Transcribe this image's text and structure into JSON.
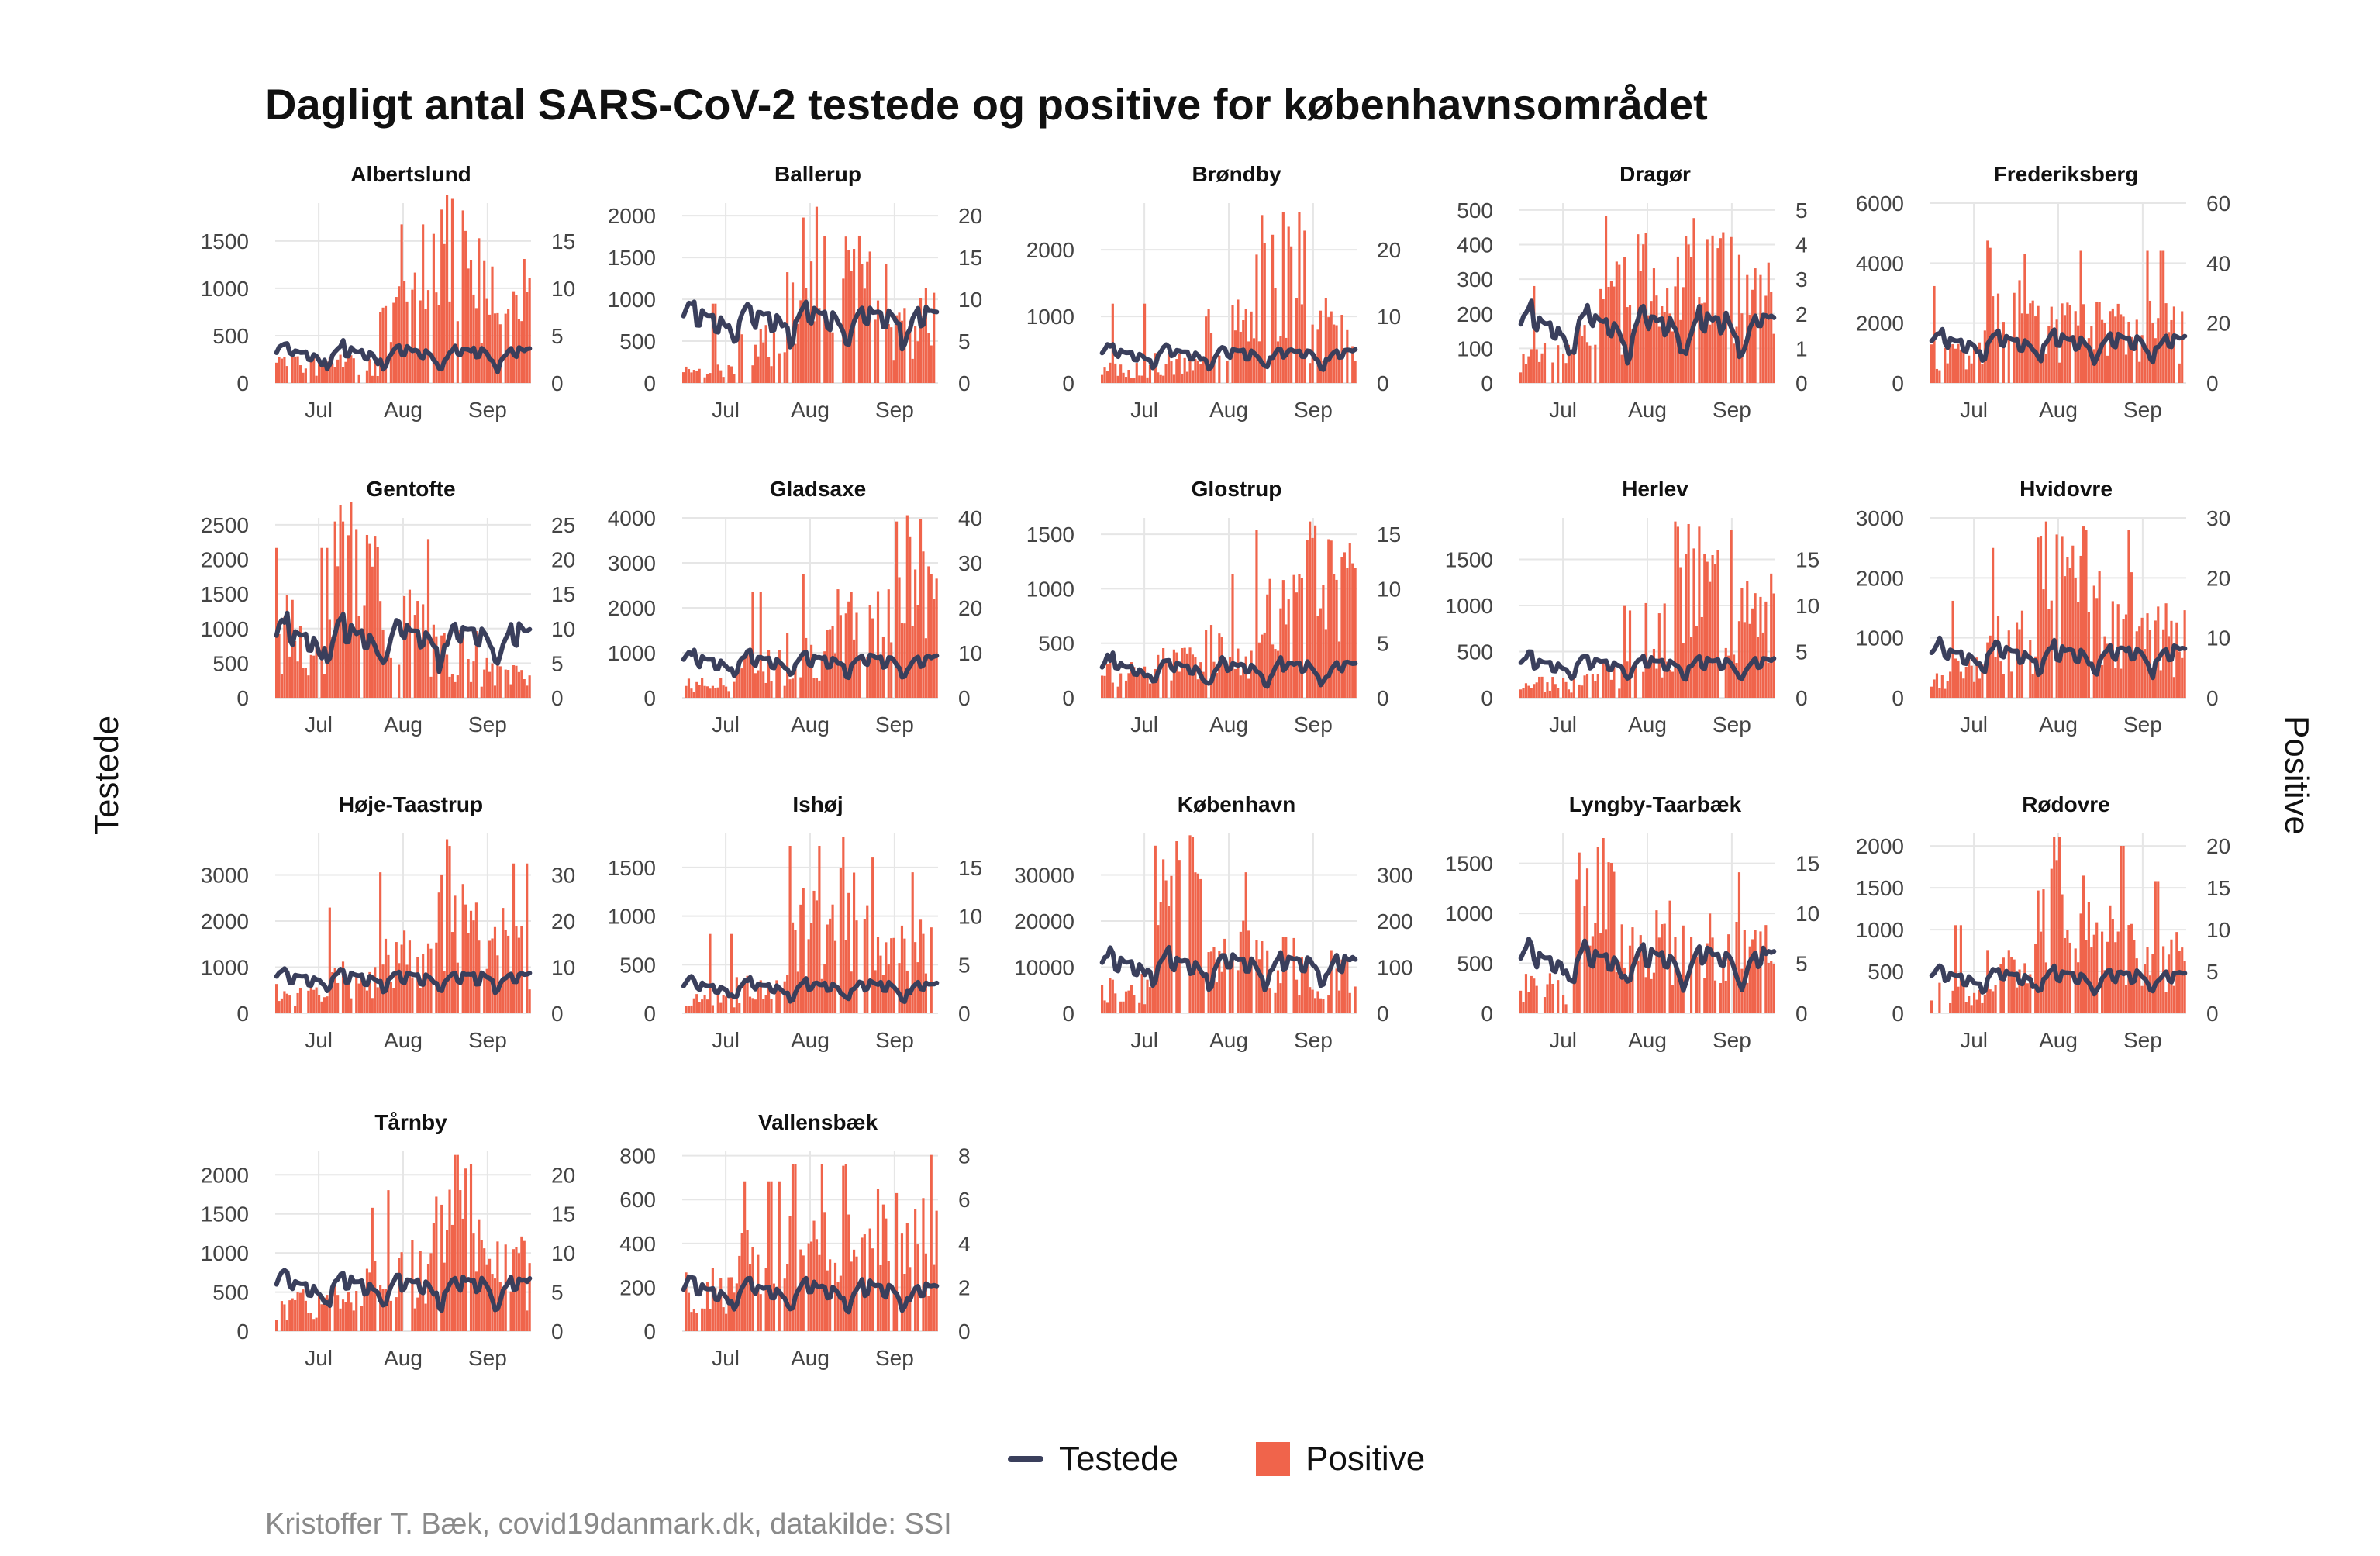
{
  "title": "Dagligt antal SARS-CoV-2 testede og positive for københavnsområdet",
  "y_left_label": "Testede",
  "y_right_label": "Positive",
  "caption": "Kristoffer T. Bæk, covid19danmark.dk, datakilde: SSI",
  "legend": {
    "line_label": "Testede",
    "bar_label": "Positive"
  },
  "colors": {
    "line": "#3a3f5c",
    "bar": "#f0644b",
    "grid": "#e6e6e6",
    "axis_text": "#444444"
  },
  "chart_data": [
    {
      "panel": "Albertslund",
      "left_ticks": [
        0,
        500,
        1000,
        1500
      ],
      "right_ticks": [
        0,
        5,
        10,
        15
      ],
      "left_max": 1900,
      "right_max": 19,
      "seed": 1,
      "tested_base": 320,
      "tested_amp": 150,
      "pos_profile": [
        0.15,
        0.15,
        0.55,
        0.9,
        0.6
      ]
    },
    {
      "panel": "Ballerup",
      "left_ticks": [
        0,
        500,
        1000,
        1500,
        2000
      ],
      "right_ticks": [
        0,
        5,
        10,
        15,
        20
      ],
      "left_max": 2150,
      "right_max": 21.5,
      "seed": 2,
      "tested_base": 800,
      "tested_amp": 250,
      "pos_profile": [
        0.1,
        0.3,
        0.8,
        0.7,
        0.45
      ]
    },
    {
      "panel": "Brøndby",
      "left_ticks": [
        0,
        1000,
        2000
      ],
      "right_ticks": [
        0,
        10,
        20
      ],
      "left_max": 2700,
      "right_max": 27,
      "seed": 3,
      "tested_base": 450,
      "tested_amp": 180,
      "pos_profile": [
        0.1,
        0.15,
        0.45,
        0.85,
        0.45
      ]
    },
    {
      "panel": "Dragør",
      "left_ticks": [
        0,
        100,
        200,
        300,
        400,
        500
      ],
      "right_ticks": [
        0,
        1,
        2,
        3,
        4,
        5
      ],
      "left_max": 520,
      "right_max": 5.2,
      "seed": 4,
      "tested_base": 170,
      "tested_amp": 90,
      "pos_profile": [
        0.2,
        0.6,
        0.8,
        0.8,
        0.7
      ]
    },
    {
      "panel": "Frederiksberg",
      "left_ticks": [
        0,
        2000,
        4000,
        6000
      ],
      "right_ticks": [
        0,
        20,
        40,
        60
      ],
      "left_max": 6000,
      "right_max": 60,
      "seed": 5,
      "tested_base": 1400,
      "tested_amp": 500,
      "pos_profile": [
        0.2,
        0.8,
        0.4,
        0.45,
        0.4
      ]
    },
    {
      "panel": "Gentofte",
      "left_ticks": [
        0,
        500,
        1000,
        1500,
        2000,
        2500
      ],
      "right_ticks": [
        0,
        5,
        10,
        15,
        20,
        25
      ],
      "left_max": 2600,
      "right_max": 26,
      "seed": 6,
      "tested_base": 900,
      "tested_amp": 400,
      "pos_profile": [
        0.5,
        0.95,
        0.55,
        0.35,
        0.2
      ]
    },
    {
      "panel": "Gladsaxe",
      "left_ticks": [
        0,
        1000,
        2000,
        3000,
        4000
      ],
      "right_ticks": [
        0,
        10,
        20,
        30,
        40
      ],
      "left_max": 4000,
      "right_max": 40,
      "seed": 7,
      "tested_base": 850,
      "tested_amp": 250,
      "pos_profile": [
        0.1,
        0.25,
        0.35,
        0.55,
        0.9
      ]
    },
    {
      "panel": "Glostrup",
      "left_ticks": [
        0,
        500,
        1000,
        1500
      ],
      "right_ticks": [
        0,
        5,
        10,
        15
      ],
      "left_max": 1650,
      "right_max": 16.5,
      "seed": 8,
      "tested_base": 280,
      "tested_amp": 150,
      "pos_profile": [
        0.2,
        0.25,
        0.35,
        0.6,
        0.85
      ]
    },
    {
      "panel": "Herlev",
      "left_ticks": [
        0,
        500,
        1000,
        1500
      ],
      "right_ticks": [
        0,
        5,
        10,
        15
      ],
      "left_max": 1950,
      "right_max": 19.5,
      "seed": 9,
      "tested_base": 380,
      "tested_amp": 130,
      "pos_profile": [
        0.1,
        0.2,
        0.45,
        0.85,
        0.6
      ]
    },
    {
      "panel": "Hvidovre",
      "left_ticks": [
        0,
        1000,
        2000,
        3000
      ],
      "right_ticks": [
        0,
        10,
        20,
        30
      ],
      "left_max": 3000,
      "right_max": 30,
      "seed": 10,
      "tested_base": 750,
      "tested_amp": 280,
      "pos_profile": [
        0.2,
        0.5,
        0.9,
        0.6,
        0.45
      ]
    },
    {
      "panel": "Høje-Taastrup",
      "left_ticks": [
        0,
        1000,
        2000,
        3000
      ],
      "right_ticks": [
        0,
        10,
        20,
        30
      ],
      "left_max": 3900,
      "right_max": 39,
      "seed": 11,
      "tested_base": 800,
      "tested_amp": 200,
      "pos_profile": [
        0.15,
        0.25,
        0.45,
        0.85,
        0.5
      ]
    },
    {
      "panel": "Ishøj",
      "left_ticks": [
        0,
        500,
        1000,
        1500
      ],
      "right_ticks": [
        0,
        5,
        10,
        15
      ],
      "left_max": 1850,
      "right_max": 18.5,
      "seed": 12,
      "tested_base": 280,
      "tested_amp": 120,
      "pos_profile": [
        0.1,
        0.2,
        0.6,
        0.75,
        0.45
      ]
    },
    {
      "panel": "København",
      "left_ticks": [
        0,
        10000,
        20000,
        30000
      ],
      "right_ticks": [
        0,
        100,
        200,
        300
      ],
      "left_max": 39000,
      "right_max": 390,
      "seed": 13,
      "tested_base": 11000,
      "tested_amp": 4000,
      "pos_profile": [
        0.2,
        0.85,
        0.45,
        0.4,
        0.3
      ]
    },
    {
      "panel": "Lyngby-Taarbæk",
      "left_ticks": [
        0,
        500,
        1000,
        1500
      ],
      "right_ticks": [
        0,
        5,
        10,
        15
      ],
      "left_max": 1800,
      "right_max": 18,
      "seed": 14,
      "tested_base": 550,
      "tested_amp": 250,
      "pos_profile": [
        0.2,
        0.85,
        0.55,
        0.5,
        0.45
      ]
    },
    {
      "panel": "Rødovre",
      "left_ticks": [
        0,
        500,
        1000,
        1500,
        2000
      ],
      "right_ticks": [
        0,
        5,
        10,
        15,
        20
      ],
      "left_max": 2150,
      "right_max": 21.5,
      "seed": 15,
      "tested_base": 450,
      "tested_amp": 160,
      "pos_profile": [
        0.15,
        0.3,
        0.75,
        0.6,
        0.4
      ]
    },
    {
      "panel": "Tårnby",
      "left_ticks": [
        0,
        500,
        1000,
        1500,
        2000
      ],
      "right_ticks": [
        0,
        5,
        10,
        15,
        20
      ],
      "left_max": 2300,
      "right_max": 23,
      "seed": 16,
      "tested_base": 600,
      "tested_amp": 250,
      "pos_profile": [
        0.2,
        0.35,
        0.45,
        0.85,
        0.45
      ]
    },
    {
      "panel": "Vallensbæk",
      "left_ticks": [
        0,
        200,
        400,
        600,
        800
      ],
      "right_ticks": [
        0,
        2,
        4,
        6,
        8
      ],
      "left_max": 820,
      "right_max": 8.2,
      "seed": 17,
      "tested_base": 190,
      "tested_amp": 80,
      "pos_profile": [
        0.3,
        0.5,
        0.6,
        0.8,
        0.7
      ]
    }
  ],
  "x_ticks": [
    "Jul",
    "Aug",
    "Sep"
  ]
}
